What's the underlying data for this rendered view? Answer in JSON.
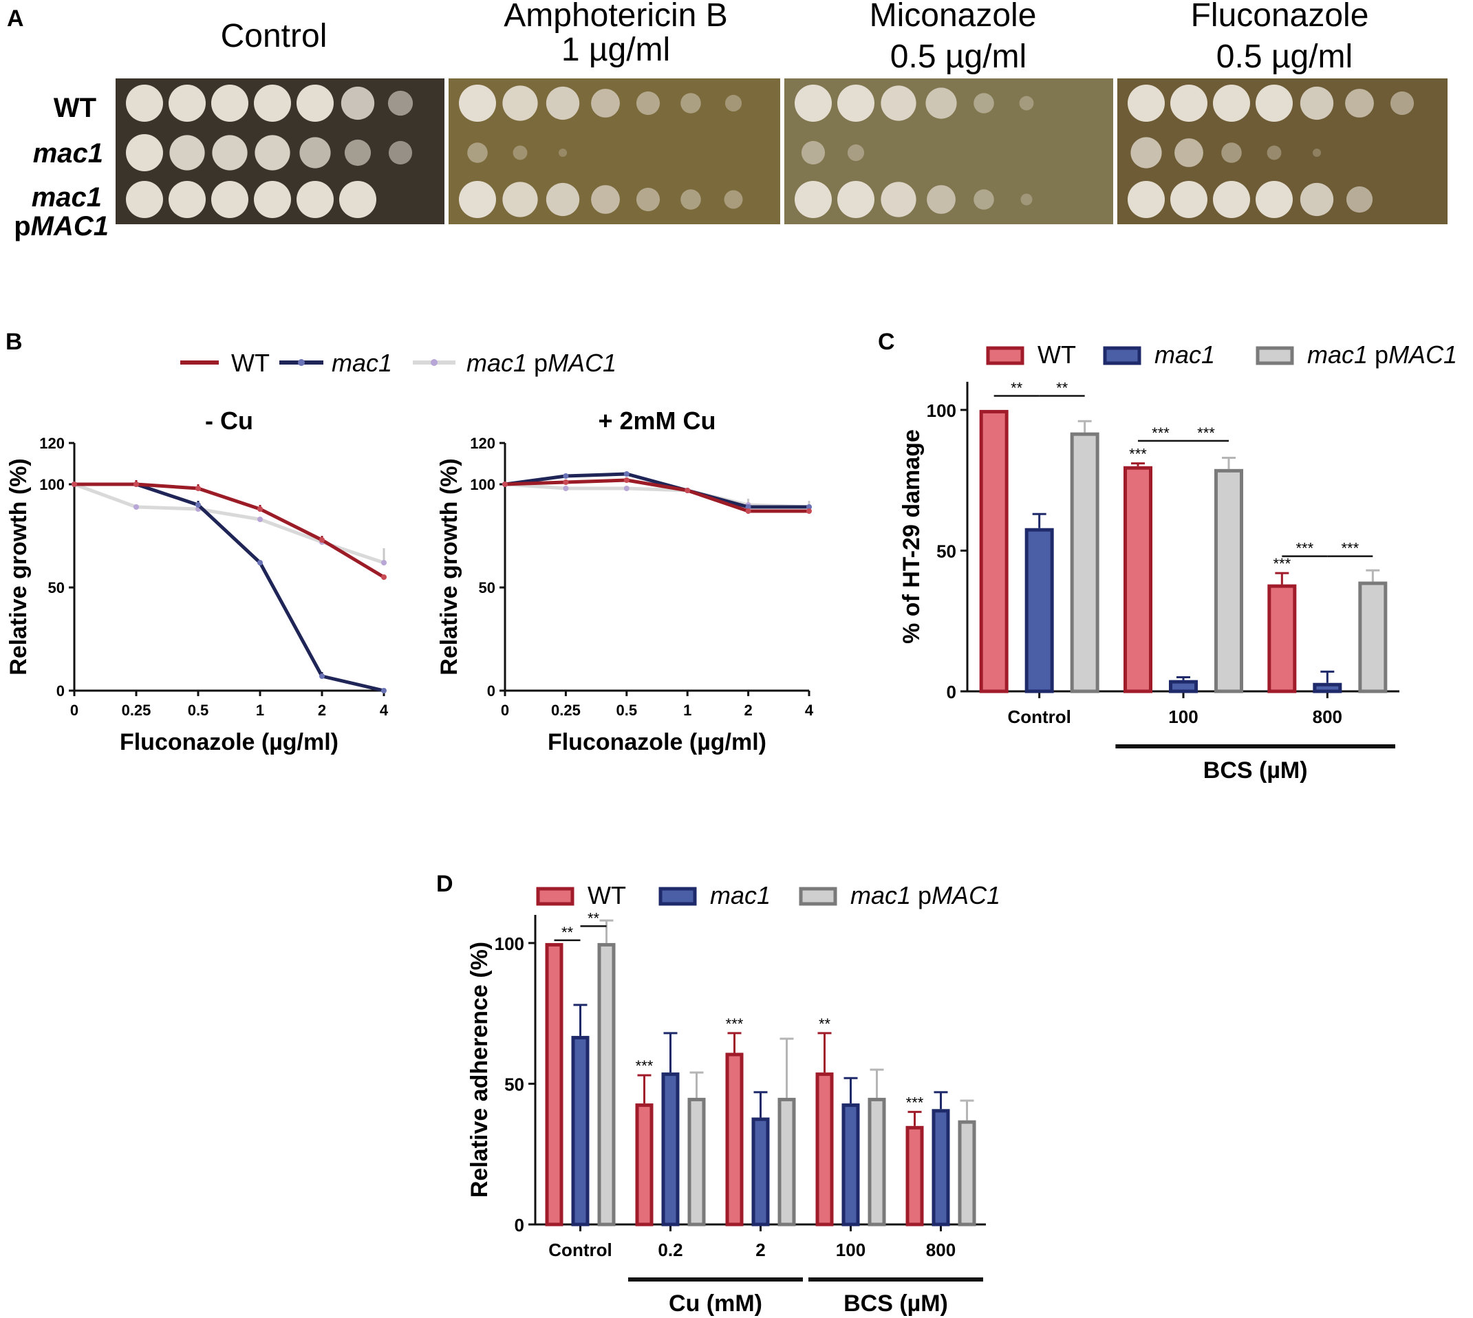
{
  "panelA": {
    "letter": "A",
    "conditions": [
      {
        "line1": "Control",
        "line2": ""
      },
      {
        "line1": "Amphotericin B",
        "line2": "1 µg/ml"
      },
      {
        "line1": "Miconazole",
        "line2": "0.5 µg/ml"
      },
      {
        "line1": "Fluconazole",
        "line2": "0.5 µg/ml"
      }
    ],
    "rows": [
      {
        "label": "WT",
        "growth": [
          [
            1,
            1,
            1,
            1,
            1,
            0.8,
            0.45
          ],
          [
            1,
            0.9,
            0.8,
            0.6,
            0.4,
            0.3,
            0.2
          ],
          [
            1,
            1,
            0.9,
            0.7,
            0.3,
            0.15,
            0
          ],
          [
            1,
            1,
            1,
            1,
            0.8,
            0.6,
            0.4
          ]
        ]
      },
      {
        "label": "mac1",
        "growth": [
          [
            1,
            0.9,
            0.9,
            0.9,
            0.7,
            0.5,
            0.4
          ],
          [
            0.3,
            0.15,
            0.05,
            0,
            0,
            0,
            0
          ],
          [
            0.4,
            0.2,
            0,
            0,
            0,
            0,
            0
          ],
          [
            0.7,
            0.6,
            0.3,
            0.15,
            0.05,
            0,
            0
          ]
        ]
      },
      {
        "label": "mac1 pMAC1",
        "label_line1": "mac1",
        "label_line2_prefix": "p",
        "label_line2_italic": "MAC1",
        "growth": [
          [
            1,
            1,
            1,
            1,
            1,
            1,
            0
          ],
          [
            1,
            0.9,
            0.8,
            0.6,
            0.4,
            0.3,
            0.25
          ],
          [
            1,
            1,
            0.9,
            0.6,
            0.3,
            0.1,
            0
          ],
          [
            1,
            1,
            1,
            1,
            0.8,
            0.5,
            0
          ]
        ]
      }
    ],
    "colors": {
      "control_bg": "#3b342a",
      "drug_bg": "#7b6a3c",
      "mico_bg": "#807650",
      "fluco_bg": "#6d5c35",
      "colony": "#e4ddd2"
    }
  },
  "panelB": {
    "letter": "B",
    "legend": [
      {
        "name": "WT",
        "italic": false,
        "suffix": ""
      },
      {
        "name": "mac1",
        "italic": true,
        "suffix": ""
      },
      {
        "name": "mac1",
        "italic": true,
        "suffix_prefix": " p",
        "suffix": "MAC1"
      }
    ],
    "xlabel": "Fluconazole (µg/ml)",
    "ylabel": "Relative growth (%)"
  },
  "panelC": {
    "letter": "C",
    "legend": [
      "WT",
      "mac1",
      "mac1 pMAC1"
    ],
    "legend_plain_prefix": " p",
    "legend_italic_suffix": "MAC1",
    "ylabel": "% of HT-29 damage",
    "bracket_label": "BCS (µM)",
    "significance": {
      "double": "**",
      "triple": "***"
    }
  },
  "panelD": {
    "letter": "D",
    "legend": [
      "WT",
      "mac1",
      "mac1 pMAC1"
    ],
    "legend_plain_prefix": " p",
    "legend_italic_suffix": "MAC1",
    "ylabel": "Relative adherence (%)",
    "bracket_labels": [
      "Cu (mM)",
      "BCS (µM)"
    ],
    "significance": {
      "double": "**",
      "triple": "***"
    }
  },
  "chart_data": [
    {
      "type": "line",
      "panel": "B-left",
      "title": "- Cu",
      "xlabel": "Fluconazole (µg/ml)",
      "ylabel": "Relative growth (%)",
      "x": [
        "0",
        "0.25",
        "0.5",
        "1",
        "2",
        "4"
      ],
      "ylim": [
        0,
        120
      ],
      "yticks": [
        0,
        50,
        100,
        120
      ],
      "series": [
        {
          "name": "WT",
          "color": "#9b1c27",
          "values": [
            100,
            100,
            98,
            88,
            73,
            55
          ],
          "errors": [
            0,
            2,
            2,
            2,
            2,
            1
          ]
        },
        {
          "name": "mac1",
          "color": "#1f2557",
          "values": [
            100,
            100,
            90,
            62,
            7,
            0
          ],
          "errors": [
            0,
            2,
            2,
            1,
            2,
            0
          ]
        },
        {
          "name": "mac1 pMAC1",
          "color": "#d9d9d9",
          "values": [
            100,
            89,
            88,
            83,
            72,
            62
          ],
          "errors": [
            0,
            1,
            1,
            1,
            1,
            7
          ]
        }
      ]
    },
    {
      "type": "line",
      "panel": "B-right",
      "title": "+ 2mM Cu",
      "xlabel": "Fluconazole (µg/ml)",
      "ylabel": "Relative growth (%)",
      "x": [
        "0",
        "0.25",
        "0.5",
        "1",
        "2",
        "4"
      ],
      "ylim": [
        0,
        120
      ],
      "yticks": [
        0,
        50,
        100,
        120
      ],
      "series": [
        {
          "name": "WT",
          "color": "#9b1c27",
          "values": [
            100,
            101,
            102,
            97,
            87,
            87
          ],
          "errors": [
            0,
            1,
            1,
            1,
            1,
            1
          ]
        },
        {
          "name": "mac1",
          "color": "#1f2557",
          "values": [
            100,
            104,
            105,
            97,
            89,
            89
          ],
          "errors": [
            0,
            1,
            1,
            1,
            1,
            1
          ]
        },
        {
          "name": "mac1 pMAC1",
          "color": "#d9d9d9",
          "values": [
            100,
            98,
            98,
            97,
            90,
            89
          ],
          "errors": [
            0,
            1,
            1,
            1,
            3,
            3
          ]
        }
      ]
    },
    {
      "type": "bar",
      "panel": "C",
      "ylabel": "% of HT-29 damage",
      "categories": [
        "Control",
        "100",
        "800"
      ],
      "group_label": {
        "text": "BCS (µM)",
        "span": [
          "100",
          "800"
        ]
      },
      "ylim": [
        0,
        110
      ],
      "yticks": [
        0,
        50,
        100
      ],
      "series": [
        {
          "name": "WT",
          "values": [
            100,
            80,
            38
          ],
          "errors": [
            0,
            1,
            4
          ]
        },
        {
          "name": "mac1",
          "values": [
            58,
            4,
            3
          ],
          "errors": [
            5,
            1,
            4
          ]
        },
        {
          "name": "mac1 pMAC1",
          "values": [
            92,
            79,
            39
          ],
          "errors": [
            4,
            4,
            4
          ]
        }
      ],
      "annotations": [
        {
          "type": "bracket",
          "between": [
            "WT",
            "mac1"
          ],
          "category": "Control",
          "label": "**"
        },
        {
          "type": "bracket",
          "between": [
            "mac1",
            "mac1 pMAC1"
          ],
          "category": "Control",
          "label": "**"
        },
        {
          "type": "bracket",
          "between": [
            "WT",
            "mac1"
          ],
          "category": "100",
          "label": "***"
        },
        {
          "type": "bracket",
          "between": [
            "mac1",
            "mac1 pMAC1"
          ],
          "category": "100",
          "label": "***"
        },
        {
          "type": "bracket",
          "between": [
            "WT",
            "mac1"
          ],
          "category": "800",
          "label": "***"
        },
        {
          "type": "bracket",
          "between": [
            "mac1",
            "mac1 pMAC1"
          ],
          "category": "800",
          "label": "***"
        },
        {
          "type": "star",
          "series": "WT",
          "category": "100",
          "label": "***"
        },
        {
          "type": "star",
          "series": "WT",
          "category": "800",
          "label": "***"
        }
      ]
    },
    {
      "type": "bar",
      "panel": "D",
      "ylabel": "Relative adherence (%)",
      "categories": [
        "Control",
        "0.2",
        "2",
        "100",
        "800"
      ],
      "group_labels": [
        {
          "text": "Cu (mM)",
          "span": [
            "0.2",
            "2"
          ]
        },
        {
          "text": "BCS (µM)",
          "span": [
            "100",
            "800"
          ]
        }
      ],
      "ylim": [
        0,
        110
      ],
      "yticks": [
        0,
        50,
        100
      ],
      "series": [
        {
          "name": "WT",
          "values": [
            100,
            43,
            61,
            54,
            35
          ],
          "errors": [
            0,
            10,
            7,
            14,
            5
          ]
        },
        {
          "name": "mac1",
          "values": [
            67,
            54,
            38,
            43,
            41
          ],
          "errors": [
            11,
            14,
            9,
            9,
            6
          ]
        },
        {
          "name": "mac1 pMAC1",
          "values": [
            100,
            45,
            45,
            45,
            37
          ],
          "errors": [
            8,
            9,
            21,
            10,
            7
          ]
        }
      ],
      "annotations": [
        {
          "type": "bracket",
          "between": [
            "WT",
            "mac1"
          ],
          "category": "Control",
          "label": "**"
        },
        {
          "type": "bracket",
          "between": [
            "mac1",
            "mac1 pMAC1"
          ],
          "category": "Control",
          "label": "**"
        },
        {
          "type": "star",
          "series": "WT",
          "category": "0.2",
          "label": "***"
        },
        {
          "type": "star",
          "series": "WT",
          "category": "2",
          "label": "***"
        },
        {
          "type": "star",
          "series": "WT",
          "category": "100",
          "label": "**"
        },
        {
          "type": "star",
          "series": "WT",
          "category": "800",
          "label": "***"
        }
      ]
    }
  ]
}
